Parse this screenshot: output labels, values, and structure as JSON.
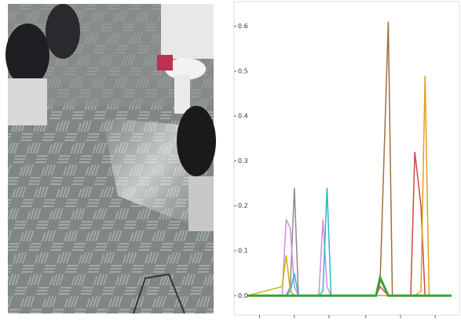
{
  "chart_data": {
    "type": "line",
    "x": [
      0,
      17,
      19,
      21,
      23,
      25,
      35,
      37,
      39,
      41,
      63,
      65,
      69,
      71,
      80,
      82,
      85,
      87,
      89,
      100
    ],
    "xlim": [
      0,
      100
    ],
    "xticks": [
      6,
      23,
      40,
      58,
      75,
      92
    ],
    "ylim": [
      -0.01,
      0.62
    ],
    "yticks": [
      {
        "value": 0,
        "label": "0.0"
      },
      0.1,
      0.2,
      0.3,
      0.4,
      0.5,
      0.6
    ],
    "series": [
      {
        "color": "#8a8a8a",
        "values": [
          0,
          0,
          0,
          0.02,
          0.24,
          0,
          0,
          0,
          0,
          0,
          0,
          0,
          0,
          0,
          0,
          0,
          0,
          0,
          0,
          0
        ]
      },
      {
        "color": "#d98ad9",
        "values": [
          0,
          0,
          0.17,
          0.15,
          0.02,
          0,
          0,
          0.17,
          0.02,
          0,
          0,
          0,
          0,
          0,
          0,
          0,
          0,
          0,
          0,
          0
        ]
      },
      {
        "color": "#c9b300",
        "values": [
          0,
          0.02,
          0.09,
          0.01,
          0,
          0,
          0,
          0,
          0,
          0,
          0,
          0,
          0,
          0,
          0,
          0,
          0,
          0,
          0,
          0
        ]
      },
      {
        "color": "#2bb5c9",
        "values": [
          0,
          0,
          0,
          0.01,
          0.05,
          0,
          0,
          0.01,
          0.24,
          0,
          0,
          0,
          0,
          0,
          0,
          0,
          0,
          0,
          0,
          0
        ]
      },
      {
        "color": "#a07040",
        "values": [
          0,
          0,
          0,
          0,
          0,
          0,
          0,
          0,
          0,
          0,
          0,
          0.03,
          0.61,
          0,
          0,
          0,
          0,
          0,
          0,
          0
        ]
      },
      {
        "color": "#d04545",
        "values": [
          0,
          0,
          0,
          0,
          0,
          0,
          0,
          0,
          0,
          0,
          0,
          0.02,
          0,
          0,
          0,
          0.32,
          0.2,
          0,
          0,
          0
        ]
      },
      {
        "color": "#e0a020",
        "values": [
          0,
          0,
          0,
          0,
          0,
          0,
          0,
          0,
          0,
          0,
          0,
          0,
          0,
          0,
          0,
          0,
          0.01,
          0.49,
          0,
          0
        ]
      },
      {
        "color": "#3aa03a",
        "values": [
          0,
          0,
          0,
          0,
          0,
          0,
          0,
          0,
          0,
          0,
          0,
          0.04,
          0,
          0,
          0,
          0,
          0,
          0,
          0,
          0
        ]
      }
    ]
  }
}
